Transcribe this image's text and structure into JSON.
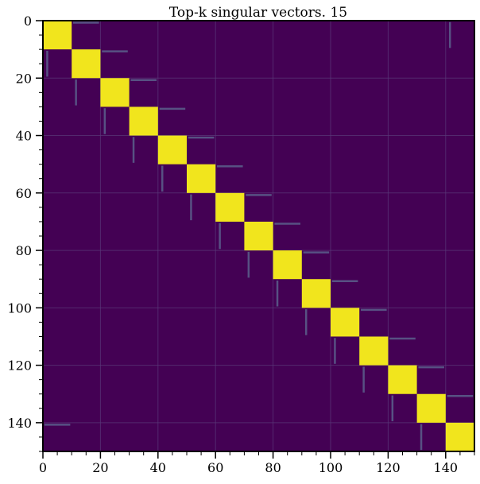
{
  "chart_data": {
    "type": "heatmap",
    "title": "Top-k singular vectors. 15",
    "xlabel": "",
    "ylabel": "",
    "size": 150,
    "block_size": 10,
    "n_blocks": 15,
    "xlim": [
      0,
      150
    ],
    "ylim": [
      150,
      0
    ],
    "x_ticks": [
      0,
      20,
      40,
      60,
      80,
      100,
      120,
      140
    ],
    "y_ticks": [
      0,
      20,
      40,
      60,
      80,
      100,
      120,
      140
    ],
    "x_tick_labels": [
      "0",
      "20",
      "40",
      "60",
      "80",
      "100",
      "120",
      "140"
    ],
    "y_tick_labels": [
      "0",
      "20",
      "40",
      "60",
      "80",
      "100",
      "120",
      "140"
    ],
    "diagonal_value": 1.0,
    "background_value": 0.0,
    "colormap": "viridis",
    "colors": {
      "background": "#440154",
      "high": "#f1e51d",
      "grid": "#5a3a7a",
      "trace": "#5b5f8c"
    },
    "grid": true
  }
}
